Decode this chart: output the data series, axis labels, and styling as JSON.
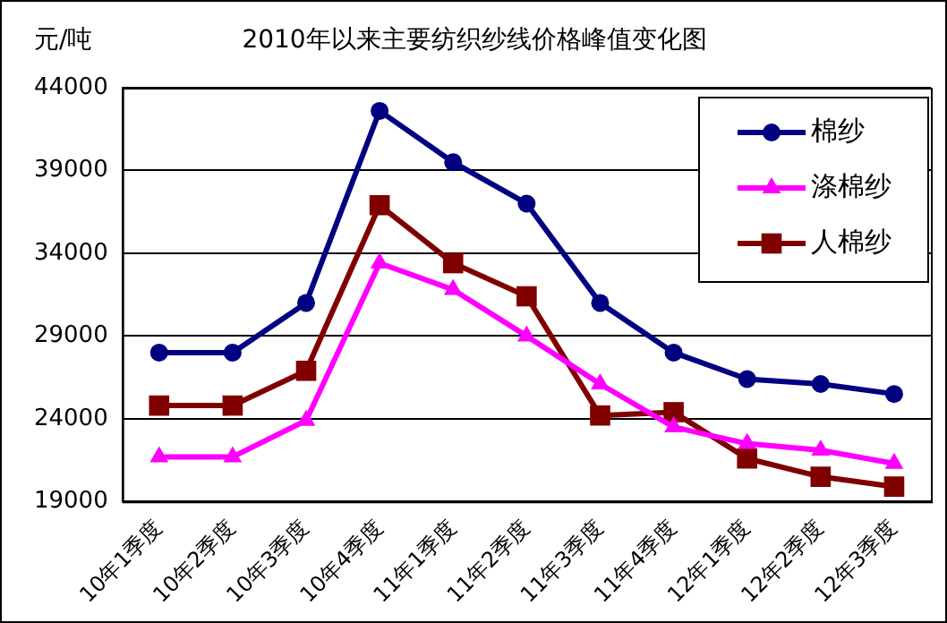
{
  "chart_data": {
    "type": "line",
    "title": "2010年以来主要纺织纱线价格峰值变化图",
    "ylabel": "元/吨",
    "categories": [
      "10年1季度",
      "10年2季度",
      "10年3季度",
      "10年4季度",
      "11年1季度",
      "11年2季度",
      "11年3季度",
      "11年4季度",
      "12年1季度",
      "12年2季度",
      "12年3季度"
    ],
    "series": [
      {
        "name": "棉纱",
        "color": "#000080",
        "marker": "circle",
        "values": [
          28000,
          28000,
          31000,
          42600,
          39500,
          37000,
          31000,
          28000,
          26400,
          26100,
          25500
        ]
      },
      {
        "name": "涤棉纱",
        "color": "#ff00ff",
        "marker": "triangle",
        "values": [
          21700,
          21700,
          23900,
          33400,
          31800,
          29000,
          26100,
          23500,
          22500,
          22100,
          21300
        ]
      },
      {
        "name": "人棉纱",
        "color": "#800000",
        "marker": "square",
        "values": [
          24800,
          24800,
          26900,
          36900,
          33400,
          31400,
          24200,
          24400,
          21600,
          20500,
          19900
        ]
      }
    ],
    "ylim": [
      19000,
      44000
    ],
    "yticks": [
      19000,
      24000,
      29000,
      34000,
      39000,
      44000
    ],
    "grid": "y",
    "legend": "top right"
  }
}
